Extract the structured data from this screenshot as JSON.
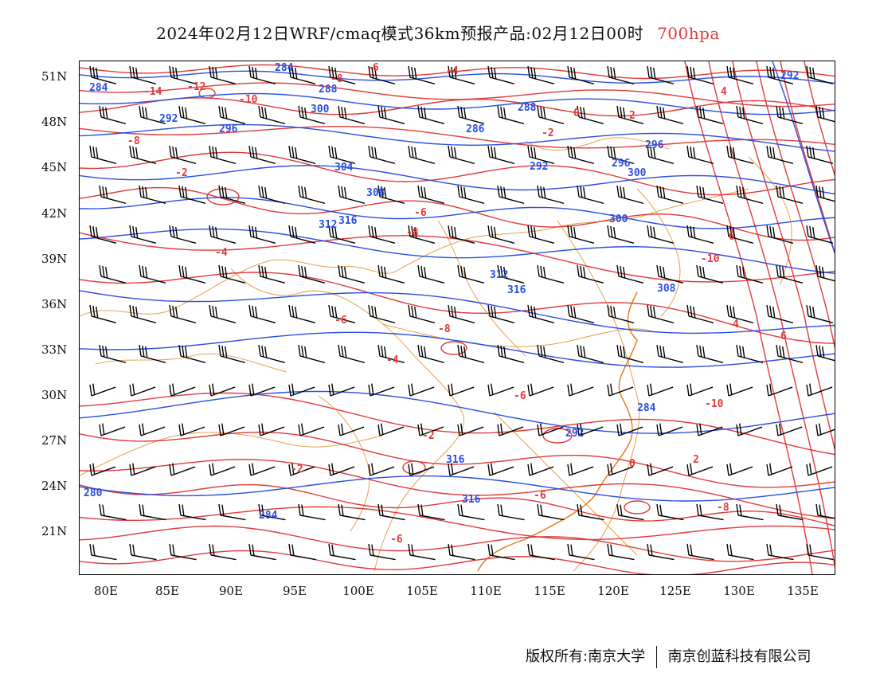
{
  "title": {
    "main": "2024年02月12日WRF/cmaq模式36km预报产品:02月12日00时",
    "level": "700hpa",
    "level_color": "#e03a3a"
  },
  "axes": {
    "lat_ticks": [
      "51N",
      "48N",
      "45N",
      "42N",
      "39N",
      "36N",
      "33N",
      "30N",
      "27N",
      "24N",
      "21N"
    ],
    "lon_ticks": [
      "80E",
      "85E",
      "90E",
      "95E",
      "100E",
      "105E",
      "110E",
      "115E",
      "120E",
      "125E",
      "130E",
      "135E"
    ]
  },
  "legend_colors": {
    "height_contours": "#2a4fe0",
    "temperature_contours": "#e03a3a",
    "wind_barbs": "#000000",
    "borders": "#e09030"
  },
  "contour_labels": {
    "height": [
      "284",
      "284",
      "288",
      "292",
      "296",
      "300",
      "304",
      "308",
      "312",
      "316",
      "288",
      "286",
      "292",
      "296",
      "300",
      "300",
      "308",
      "316",
      "312",
      "316",
      "316",
      "292",
      "284",
      "284",
      "280",
      "292",
      "296"
    ],
    "temperature": [
      "-14",
      "-12",
      "-10",
      "-8",
      "-6",
      "-4",
      "-2",
      "0",
      "2",
      "4",
      "6",
      "-10",
      "-6",
      "-8",
      "-4",
      "-2",
      "-8",
      "-6",
      "-8",
      "-6",
      "-6",
      "-4",
      "-2",
      "-2",
      "0",
      "2",
      "4",
      "6",
      "-10",
      "-8",
      "-6"
    ]
  },
  "footer": {
    "copyright": "版权所有:南京大学",
    "company": "南京创蓝科技有限公司"
  }
}
